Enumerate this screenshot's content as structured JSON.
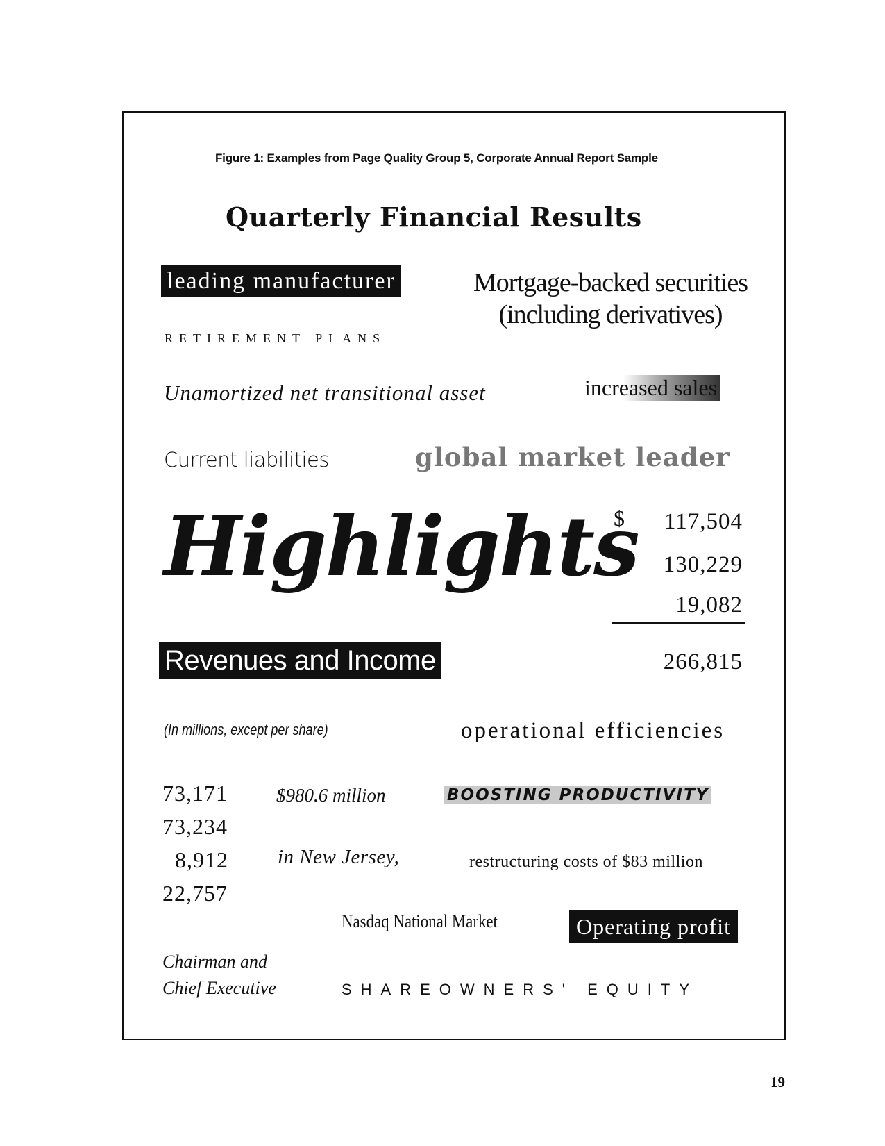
{
  "figure": {
    "caption": "Figure 1:  Examples from Page Quality Group 5, Corporate Annual Report Sample",
    "title": "Quarterly Financial Results"
  },
  "samples": {
    "leading_manufacturer": "leading manufacturer",
    "mortgage_line1": "Mortgage-backed securities",
    "mortgage_line2": "(including derivatives)",
    "retirement_plans": "RETIREMENT PLANS",
    "unamortized": "Unamortized net transitional asset",
    "increased_sales": "increased sales",
    "current_liabilities": "Current liabilities",
    "global_market_leader": "global market leader",
    "highlights": "Highlights",
    "dollar_sign": "$",
    "figures": [
      "117,504",
      "130,229",
      "19,082"
    ],
    "figures_total": "266,815",
    "revenues_income": "Revenues and Income",
    "in_millions": "(In millions, except per share)",
    "operational_efficiencies": "operational efficiencies",
    "column_numbers": [
      "73,171",
      "73,234",
      "8,912",
      "22,757"
    ],
    "million_amount": "$980.6 million",
    "boosting_productivity": "BOOSTING PRODUCTIVITY",
    "new_jersey": "in New Jersey,",
    "restructuring": "restructuring costs of $83 million",
    "nasdaq": "Nasdaq National Market",
    "operating_profit": "Operating profit",
    "chairman_line1": "Chairman and",
    "chairman_line2": "Chief Executive",
    "shareowners_equity": "SHAREOWNERS' EQUITY"
  },
  "page_number": "19"
}
